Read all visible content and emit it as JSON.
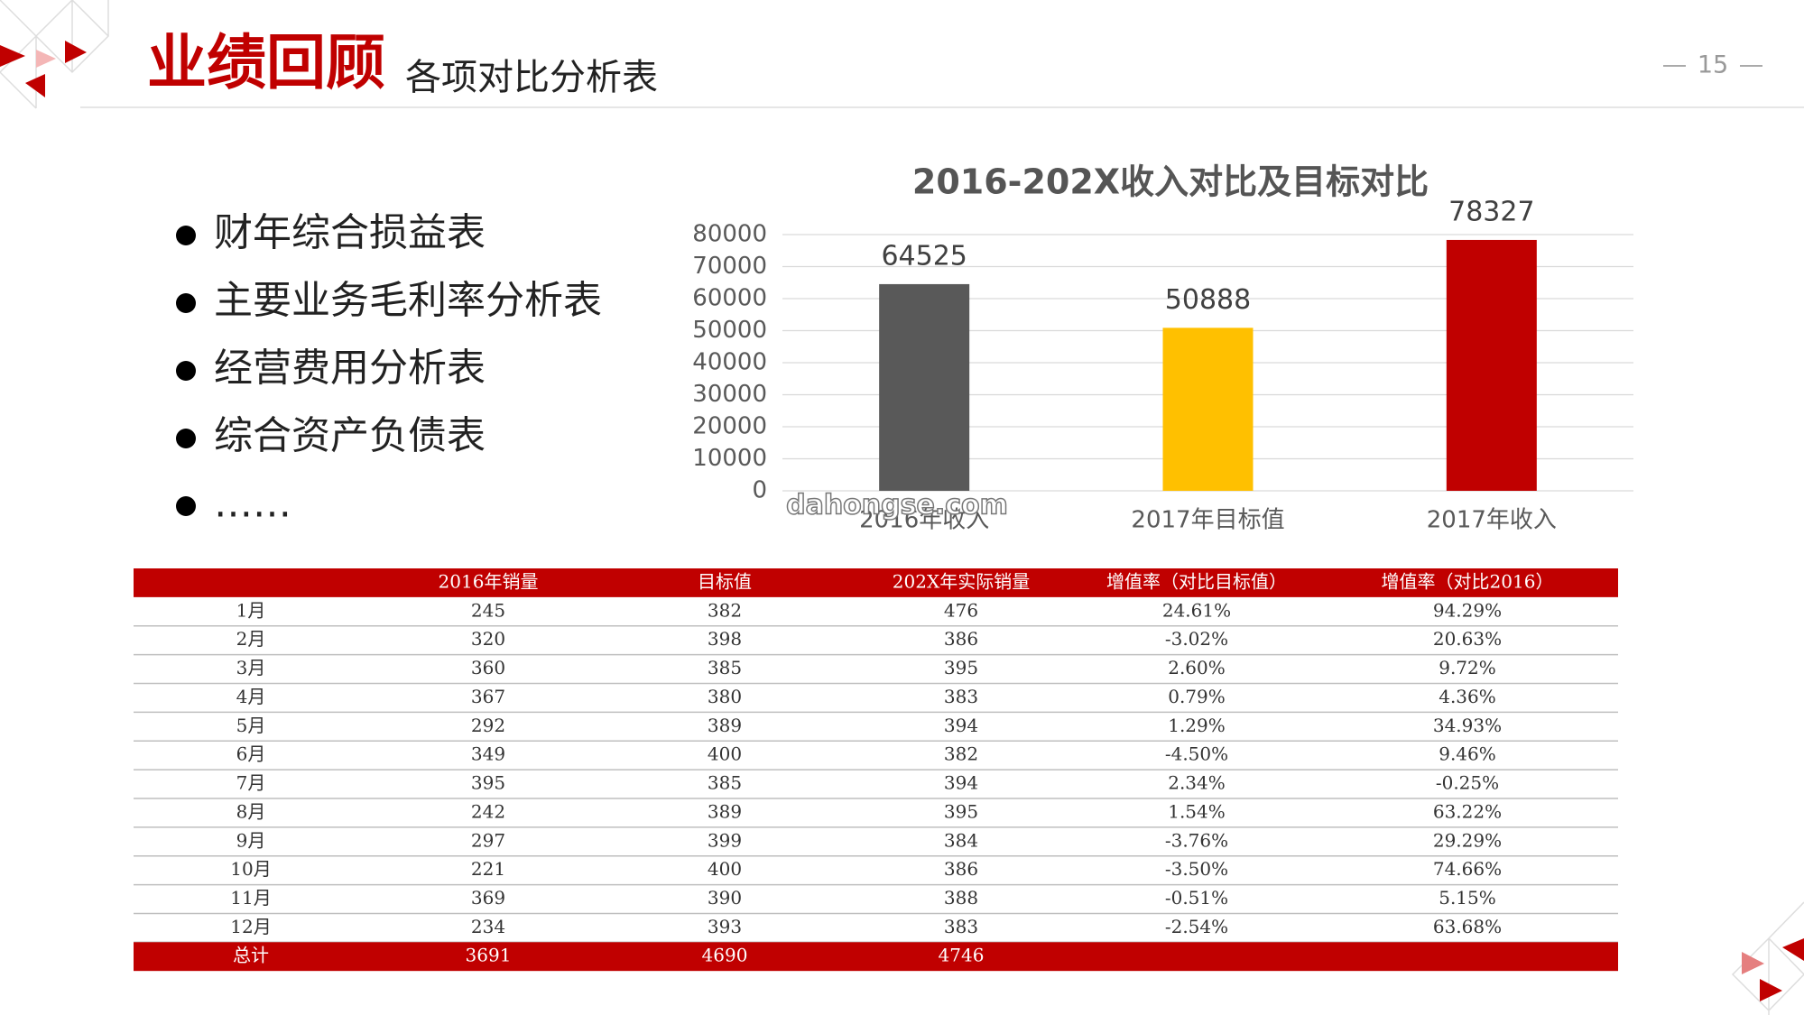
{
  "header": {
    "title": "业绩回顾",
    "subtitle": "各项对比分析表",
    "page_number": "15"
  },
  "bullets": [
    "财年综合损益表",
    "主要业务毛利率分析表",
    "经营费用分析表",
    "综合资产负债表",
    "……"
  ],
  "chart_data": {
    "type": "bar",
    "title": "2016-202X收入对比及目标对比",
    "categories": [
      "2016年收入",
      "2017年目标值",
      "2017年收入"
    ],
    "values": [
      64525,
      50888,
      78327
    ],
    "colors": [
      "#595959",
      "#ffc000",
      "#c00000"
    ],
    "ylim": [
      0,
      80000
    ],
    "yticks": [
      0,
      10000,
      20000,
      30000,
      40000,
      50000,
      60000,
      70000,
      80000
    ],
    "grid": true,
    "value_labels_shown": true
  },
  "watermark": "dahongse.com",
  "table": {
    "columns": [
      "2016年销量",
      "目标值",
      "202X年实际销量",
      "增值率（对比目标值）",
      "增值率（对比2016）"
    ],
    "rows": [
      [
        "1月",
        "245",
        "382",
        "476",
        "24.61%",
        "94.29%"
      ],
      [
        "2月",
        "320",
        "398",
        "386",
        "-3.02%",
        "20.63%"
      ],
      [
        "3月",
        "360",
        "385",
        "395",
        "2.60%",
        "9.72%"
      ],
      [
        "4月",
        "367",
        "380",
        "383",
        "0.79%",
        "4.36%"
      ],
      [
        "5月",
        "292",
        "389",
        "394",
        "1.29%",
        "34.93%"
      ],
      [
        "6月",
        "349",
        "400",
        "382",
        "-4.50%",
        "9.46%"
      ],
      [
        "7月",
        "395",
        "385",
        "394",
        "2.34%",
        "-0.25%"
      ],
      [
        "8月",
        "242",
        "389",
        "395",
        "1.54%",
        "63.22%"
      ],
      [
        "9月",
        "297",
        "399",
        "384",
        "-3.76%",
        "29.29%"
      ],
      [
        "10月",
        "221",
        "400",
        "386",
        "-3.50%",
        "74.66%"
      ],
      [
        "11月",
        "369",
        "390",
        "388",
        "-0.51%",
        "5.15%"
      ],
      [
        "12月",
        "234",
        "393",
        "383",
        "-2.54%",
        "63.68%"
      ]
    ],
    "total": [
      "总计",
      "3691",
      "4690",
      "4746"
    ]
  }
}
